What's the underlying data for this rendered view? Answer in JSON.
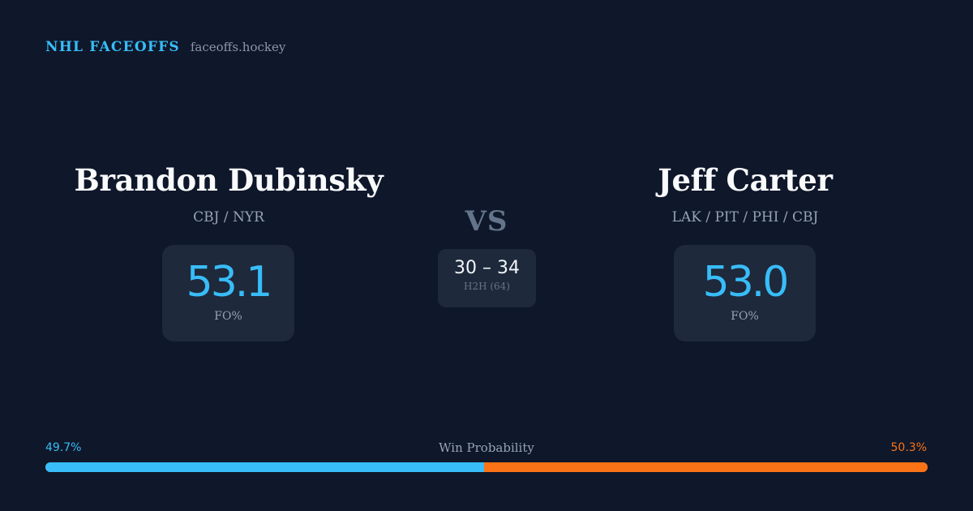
{
  "brand": {
    "name": "NHL FACEOFFS",
    "site": "faceoffs.hockey"
  },
  "matchup": {
    "vs_label": "VS",
    "left_player": {
      "name": "Brandon Dubinsky",
      "teams": "CBJ / NYR",
      "fo_pct": "53.1",
      "fo_label": "FO%"
    },
    "right_player": {
      "name": "Jeff Carter",
      "teams": "LAK / PIT / PHI / CBJ",
      "fo_pct": "53.0",
      "fo_label": "FO%"
    },
    "h2h": {
      "score": "30 – 34",
      "label": "H2H (64)"
    }
  },
  "win_probability": {
    "title": "Win Probability",
    "left_label": "49.7%",
    "right_label": "50.3%",
    "left_value": 49.7,
    "right_value": 50.3,
    "left_color": "#38bdf8",
    "right_color": "#f97316"
  },
  "colors": {
    "background": "#0f172a",
    "card": "#1e293b",
    "accent": "#38bdf8",
    "secondary_accent": "#f97316"
  }
}
